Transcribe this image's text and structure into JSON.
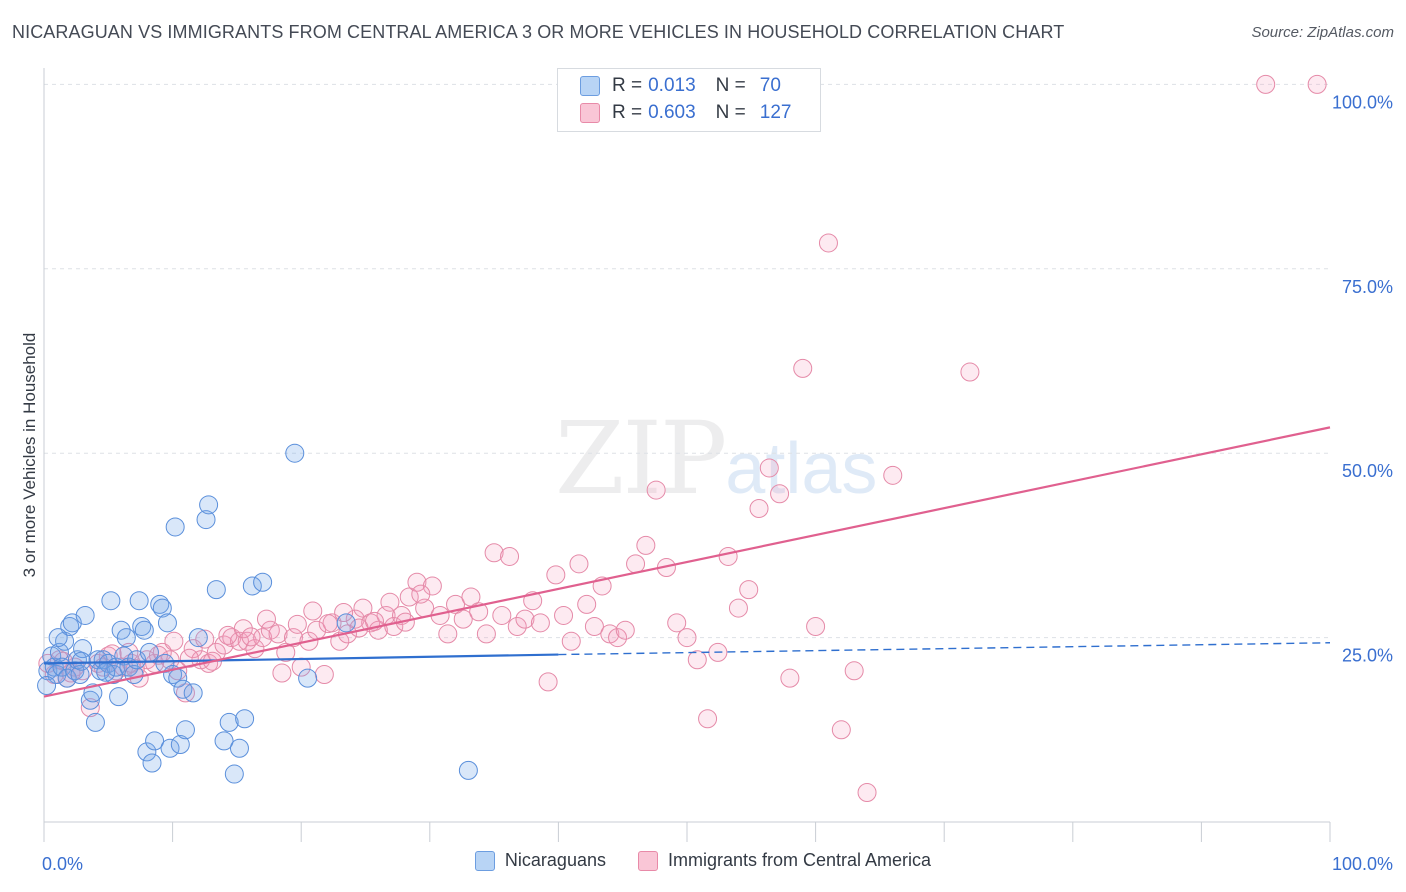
{
  "header": {
    "title": "NICARAGUAN VS IMMIGRANTS FROM CENTRAL AMERICA 3 OR MORE VEHICLES IN HOUSEHOLD CORRELATION CHART",
    "source": "Source: ZipAtlas.com"
  },
  "watermark": {
    "zip": "ZIP",
    "atlas": "atlas"
  },
  "legend": {
    "r_label": "R =",
    "n_label": "N =",
    "items": [
      {
        "name": "Nicaraguans",
        "r": "0.013",
        "n": "70",
        "fill": "#b8d4f5",
        "stroke": "#6c9de0"
      },
      {
        "name": "Immigrants from Central America",
        "r": "0.603",
        "n": "127",
        "fill": "#f9c6d6",
        "stroke": "#e88aa8"
      }
    ]
  },
  "colors": {
    "blue_point_fill": "rgba(120,170,235,0.28)",
    "blue_point_stroke": "#5a8fdb",
    "pink_point_fill": "rgba(245,160,190,0.22)",
    "pink_point_stroke": "#e58aa8",
    "blue_trend": "#2f6fcf",
    "pink_trend": "#e0608f",
    "grid": "#dde1e6",
    "tick_label": "#3a6fd0"
  },
  "chart_data": {
    "type": "scatter",
    "title": "NICARAGUAN VS IMMIGRANTS FROM CENTRAL AMERICA 3 OR MORE VEHICLES IN HOUSEHOLD CORRELATION CHART",
    "xlabel": "",
    "ylabel": "3 or more Vehicles in Household",
    "xlim": [
      0,
      100
    ],
    "ylim": [
      0,
      101
    ],
    "x_tick_labels": [
      "0.0%",
      "100.0%"
    ],
    "y_ticks": [
      25,
      50,
      75,
      100
    ],
    "y_tick_labels": [
      "25.0%",
      "50.0%",
      "75.0%",
      "100.0%"
    ],
    "grid": true,
    "legend_position": "top-center",
    "series": [
      {
        "name": "Nicaraguans",
        "r": 0.013,
        "n": 70,
        "trend": {
          "x": [
            0,
            40
          ],
          "y": [
            21.5,
            22.7
          ],
          "dashed_to": [
            100,
            24.3
          ]
        },
        "points": [
          [
            0.3,
            20.5
          ],
          [
            0.6,
            22.5
          ],
          [
            0.8,
            21.0
          ],
          [
            1.0,
            20.0
          ],
          [
            1.2,
            23.0
          ],
          [
            1.4,
            21.0
          ],
          [
            1.6,
            24.5
          ],
          [
            1.8,
            19.5
          ],
          [
            2.0,
            26.5
          ],
          [
            2.2,
            27.0
          ],
          [
            2.4,
            20.5
          ],
          [
            2.6,
            22.0
          ],
          [
            2.8,
            20.0
          ],
          [
            3.0,
            23.5
          ],
          [
            3.2,
            28.0
          ],
          [
            3.6,
            16.5
          ],
          [
            3.8,
            17.5
          ],
          [
            4.0,
            13.5
          ],
          [
            4.2,
            22.0
          ],
          [
            4.4,
            20.5
          ],
          [
            4.6,
            22.0
          ],
          [
            5.0,
            21.5
          ],
          [
            5.2,
            30.0
          ],
          [
            5.4,
            20.0
          ],
          [
            5.6,
            21.0
          ],
          [
            5.8,
            17.0
          ],
          [
            6.0,
            26.0
          ],
          [
            6.2,
            22.5
          ],
          [
            6.4,
            25.0
          ],
          [
            6.6,
            21.0
          ],
          [
            7.0,
            20.0
          ],
          [
            7.2,
            22.0
          ],
          [
            7.4,
            30.0
          ],
          [
            7.6,
            26.5
          ],
          [
            7.8,
            26.0
          ],
          [
            8.0,
            9.5
          ],
          [
            8.2,
            23.0
          ],
          [
            8.4,
            8.0
          ],
          [
            8.6,
            11.0
          ],
          [
            9.0,
            29.5
          ],
          [
            9.2,
            29.0
          ],
          [
            9.4,
            21.5
          ],
          [
            9.6,
            27.0
          ],
          [
            9.8,
            10.0
          ],
          [
            10.0,
            20.0
          ],
          [
            10.2,
            40.0
          ],
          [
            10.4,
            19.5
          ],
          [
            10.6,
            10.5
          ],
          [
            10.8,
            18.0
          ],
          [
            11.0,
            12.5
          ],
          [
            11.6,
            17.5
          ],
          [
            12.0,
            25.0
          ],
          [
            12.6,
            41.0
          ],
          [
            12.8,
            43.0
          ],
          [
            13.4,
            31.5
          ],
          [
            14.0,
            11.0
          ],
          [
            14.4,
            13.5
          ],
          [
            14.8,
            6.5
          ],
          [
            15.2,
            10.0
          ],
          [
            15.6,
            14.0
          ],
          [
            16.2,
            32.0
          ],
          [
            17.0,
            32.5
          ],
          [
            19.5,
            50.0
          ],
          [
            20.5,
            19.5
          ],
          [
            23.5,
            27.0
          ],
          [
            33.0,
            7.0
          ],
          [
            0.2,
            18.5
          ],
          [
            1.1,
            25.0
          ],
          [
            2.9,
            21.8
          ],
          [
            4.8,
            20.3
          ]
        ]
      },
      {
        "name": "Immigrants from Central America",
        "r": 0.603,
        "n": 127,
        "trend": {
          "x": [
            0,
            100
          ],
          "y": [
            17.0,
            53.5
          ]
        },
        "points": [
          [
            0.3,
            21.5
          ],
          [
            0.8,
            20.0
          ],
          [
            1.2,
            22.0
          ],
          [
            1.8,
            19.5
          ],
          [
            2.4,
            21.0
          ],
          [
            3.0,
            20.5
          ],
          [
            3.6,
            15.5
          ],
          [
            4.2,
            21.5
          ],
          [
            5.0,
            22.5
          ],
          [
            5.6,
            20.5
          ],
          [
            6.2,
            21.0
          ],
          [
            6.8,
            21.5
          ],
          [
            7.4,
            19.5
          ],
          [
            8.0,
            22.0
          ],
          [
            8.6,
            21.5
          ],
          [
            9.2,
            23.0
          ],
          [
            9.8,
            22.0
          ],
          [
            10.4,
            20.5
          ],
          [
            11.0,
            17.5
          ],
          [
            11.6,
            23.5
          ],
          [
            12.2,
            22.0
          ],
          [
            12.8,
            21.5
          ],
          [
            13.4,
            23.0
          ],
          [
            14.0,
            24.0
          ],
          [
            14.6,
            25.0
          ],
          [
            15.2,
            24.5
          ],
          [
            15.8,
            24.5
          ],
          [
            16.4,
            23.5
          ],
          [
            17.0,
            25.0
          ],
          [
            17.6,
            26.0
          ],
          [
            18.2,
            25.5
          ],
          [
            18.8,
            23.0
          ],
          [
            19.4,
            25.0
          ],
          [
            20.0,
            21.0
          ],
          [
            20.6,
            24.5
          ],
          [
            21.2,
            26.0
          ],
          [
            21.8,
            20.0
          ],
          [
            22.4,
            27.0
          ],
          [
            23.0,
            24.5
          ],
          [
            23.6,
            25.5
          ],
          [
            24.2,
            27.5
          ],
          [
            24.8,
            29.0
          ],
          [
            25.4,
            27.0
          ],
          [
            26.0,
            26.0
          ],
          [
            26.6,
            28.0
          ],
          [
            27.2,
            26.5
          ],
          [
            27.8,
            28.0
          ],
          [
            28.4,
            30.5
          ],
          [
            29.0,
            32.5
          ],
          [
            29.6,
            29.0
          ],
          [
            30.2,
            32.0
          ],
          [
            30.8,
            28.0
          ],
          [
            31.4,
            25.5
          ],
          [
            32.0,
            29.5
          ],
          [
            32.6,
            27.5
          ],
          [
            33.2,
            30.5
          ],
          [
            33.8,
            28.5
          ],
          [
            34.4,
            25.5
          ],
          [
            35.0,
            36.5
          ],
          [
            35.6,
            28.0
          ],
          [
            36.2,
            36.0
          ],
          [
            36.8,
            26.5
          ],
          [
            37.4,
            27.5
          ],
          [
            38.0,
            30.0
          ],
          [
            38.6,
            27.0
          ],
          [
            39.2,
            19.0
          ],
          [
            39.8,
            33.5
          ],
          [
            40.4,
            28.0
          ],
          [
            41.0,
            24.5
          ],
          [
            41.6,
            35.0
          ],
          [
            42.2,
            29.5
          ],
          [
            42.8,
            26.5
          ],
          [
            43.4,
            32.0
          ],
          [
            44.0,
            25.5
          ],
          [
            44.6,
            25.0
          ],
          [
            45.2,
            26.0
          ],
          [
            46.0,
            35.0
          ],
          [
            46.8,
            37.5
          ],
          [
            47.6,
            45.0
          ],
          [
            48.4,
            34.5
          ],
          [
            49.2,
            27.0
          ],
          [
            50.0,
            25.0
          ],
          [
            50.8,
            22.0
          ],
          [
            51.6,
            14.0
          ],
          [
            52.4,
            23.0
          ],
          [
            53.2,
            36.0
          ],
          [
            54.0,
            29.0
          ],
          [
            54.8,
            31.5
          ],
          [
            55.6,
            42.5
          ],
          [
            56.4,
            48.0
          ],
          [
            57.2,
            44.5
          ],
          [
            58.0,
            19.5
          ],
          [
            59.0,
            61.5
          ],
          [
            60.0,
            26.5
          ],
          [
            61.0,
            78.5
          ],
          [
            62.0,
            12.5
          ],
          [
            63.0,
            20.5
          ],
          [
            64.0,
            4.0
          ],
          [
            66.0,
            47.0
          ],
          [
            72.0,
            61.0
          ],
          [
            95.0,
            100.0
          ],
          [
            99.0,
            100.0
          ],
          [
            1.5,
            21.8
          ],
          [
            2.1,
            20.2
          ],
          [
            4.6,
            21.0
          ],
          [
            5.3,
            22.8
          ],
          [
            6.6,
            23.0
          ],
          [
            7.1,
            20.8
          ],
          [
            8.9,
            22.6
          ],
          [
            10.1,
            24.5
          ],
          [
            11.3,
            22.2
          ],
          [
            12.5,
            24.8
          ],
          [
            13.1,
            21.8
          ],
          [
            14.3,
            25.3
          ],
          [
            15.5,
            26.2
          ],
          [
            16.1,
            25.1
          ],
          [
            17.3,
            27.5
          ],
          [
            18.5,
            20.2
          ],
          [
            19.7,
            26.8
          ],
          [
            20.9,
            28.6
          ],
          [
            22.1,
            26.9
          ],
          [
            23.3,
            28.4
          ],
          [
            24.5,
            26.3
          ],
          [
            25.7,
            27.2
          ],
          [
            26.9,
            29.8
          ],
          [
            28.1,
            27.1
          ],
          [
            29.3,
            30.9
          ]
        ]
      }
    ]
  }
}
